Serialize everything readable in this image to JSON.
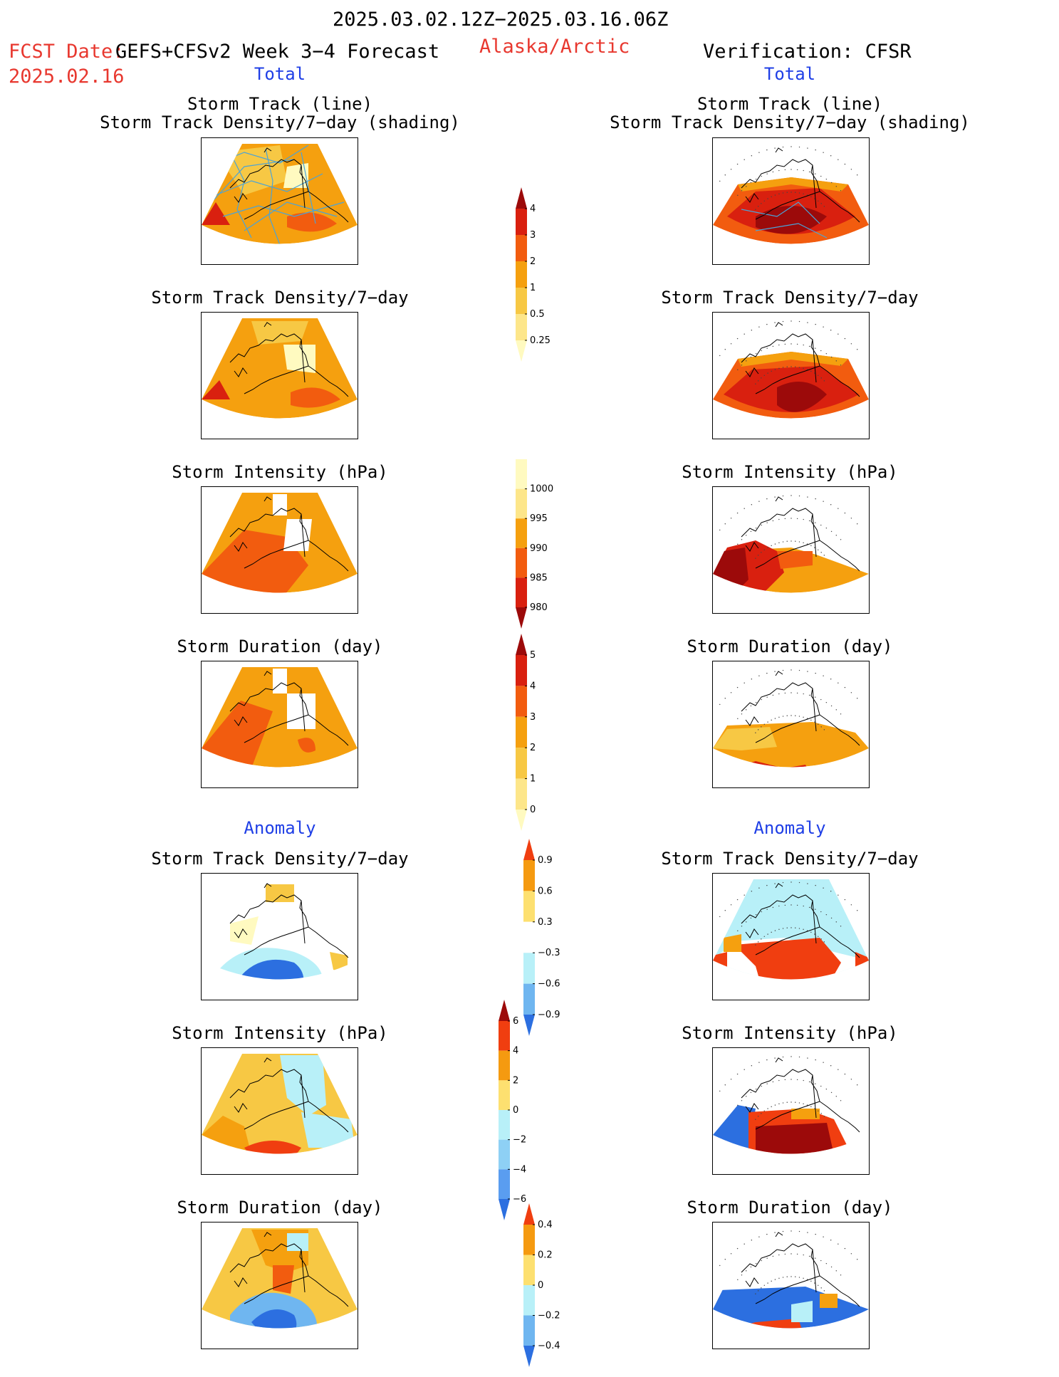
{
  "header": {
    "period": "2025.03.02.12Z−2025.03.16.06Z",
    "fcst_date_label": "FCST Date:",
    "forecast_title": "GEFS+CFSv2 Week 3−4 Forecast",
    "fcst_date_value": "2025.02.16",
    "region": "Alaska/Arctic",
    "verification": "Verification: CFSR"
  },
  "sections": {
    "total_left": "Total",
    "total_right": "Total",
    "anomaly_left": "Anomaly",
    "anomaly_right": "Anomaly"
  },
  "panel_titles": {
    "track_line": "Storm Track (line)",
    "track_shading": "Storm Track Density/7−day (shading)",
    "density": "Storm Track Density/7−day",
    "intensity": "Storm Intensity (hPa)",
    "duration": "Storm Duration (day)"
  },
  "colorbars": {
    "density_total": {
      "labels": [
        "4",
        "3",
        "2",
        "1",
        "0.5",
        "0.25"
      ],
      "colors": [
        "#9c0a0a",
        "#d9200f",
        "#f25c0f",
        "#f5a00f",
        "#f7c844",
        "#fde68a",
        "#fffac0"
      ]
    },
    "intensity_total": {
      "labels": [
        "1000",
        "995",
        "990",
        "985",
        "980"
      ],
      "colors": [
        "#fffac0",
        "#fde68a",
        "#f5a00f",
        "#f25c0f",
        "#d9200f",
        "#9c0a0a"
      ]
    },
    "duration_total": {
      "labels": [
        "5",
        "4",
        "3",
        "2",
        "1",
        "0"
      ],
      "colors": [
        "#9c0a0a",
        "#d9200f",
        "#f25c0f",
        "#f5a00f",
        "#f7c844",
        "#fde68a",
        "#fffac0"
      ]
    },
    "density_anom": {
      "labels": [
        "0.9",
        "0.6",
        "0.3",
        "−0.3",
        "−0.6",
        "−0.9"
      ],
      "colors": [
        "#f03e10",
        "#f59a10",
        "#fde070",
        "#ffffff",
        "#b8f0f8",
        "#6fb6f0",
        "#2c6fe0"
      ]
    },
    "intensity_anom": {
      "labels": [
        "6",
        "4",
        "2",
        "0",
        "−2",
        "−4",
        "−6"
      ],
      "colors": [
        "#9c0a0a",
        "#f03e10",
        "#f59a10",
        "#fde070",
        "#b8f0f8",
        "#8ed0f5",
        "#5a9df0",
        "#2c6fe0"
      ]
    },
    "duration_anom": {
      "labels": [
        "0.4",
        "0.2",
        "0",
        "−0.2",
        "−0.4"
      ],
      "colors": [
        "#f03e10",
        "#f59a10",
        "#fde070",
        "#b8f0f8",
        "#6fb6f0",
        "#2c6fe0"
      ]
    }
  },
  "map_palette": {
    "dark_red": "#9c0a0a",
    "red": "#d9200f",
    "orange_red": "#f25c0f",
    "orange": "#f5a00f",
    "light_orange": "#f7c844",
    "yellow": "#fde68a",
    "pale": "#fffac0",
    "light_blue": "#b8f0f8",
    "blue": "#2c6fe0",
    "track_line": "#4aa3d8"
  }
}
